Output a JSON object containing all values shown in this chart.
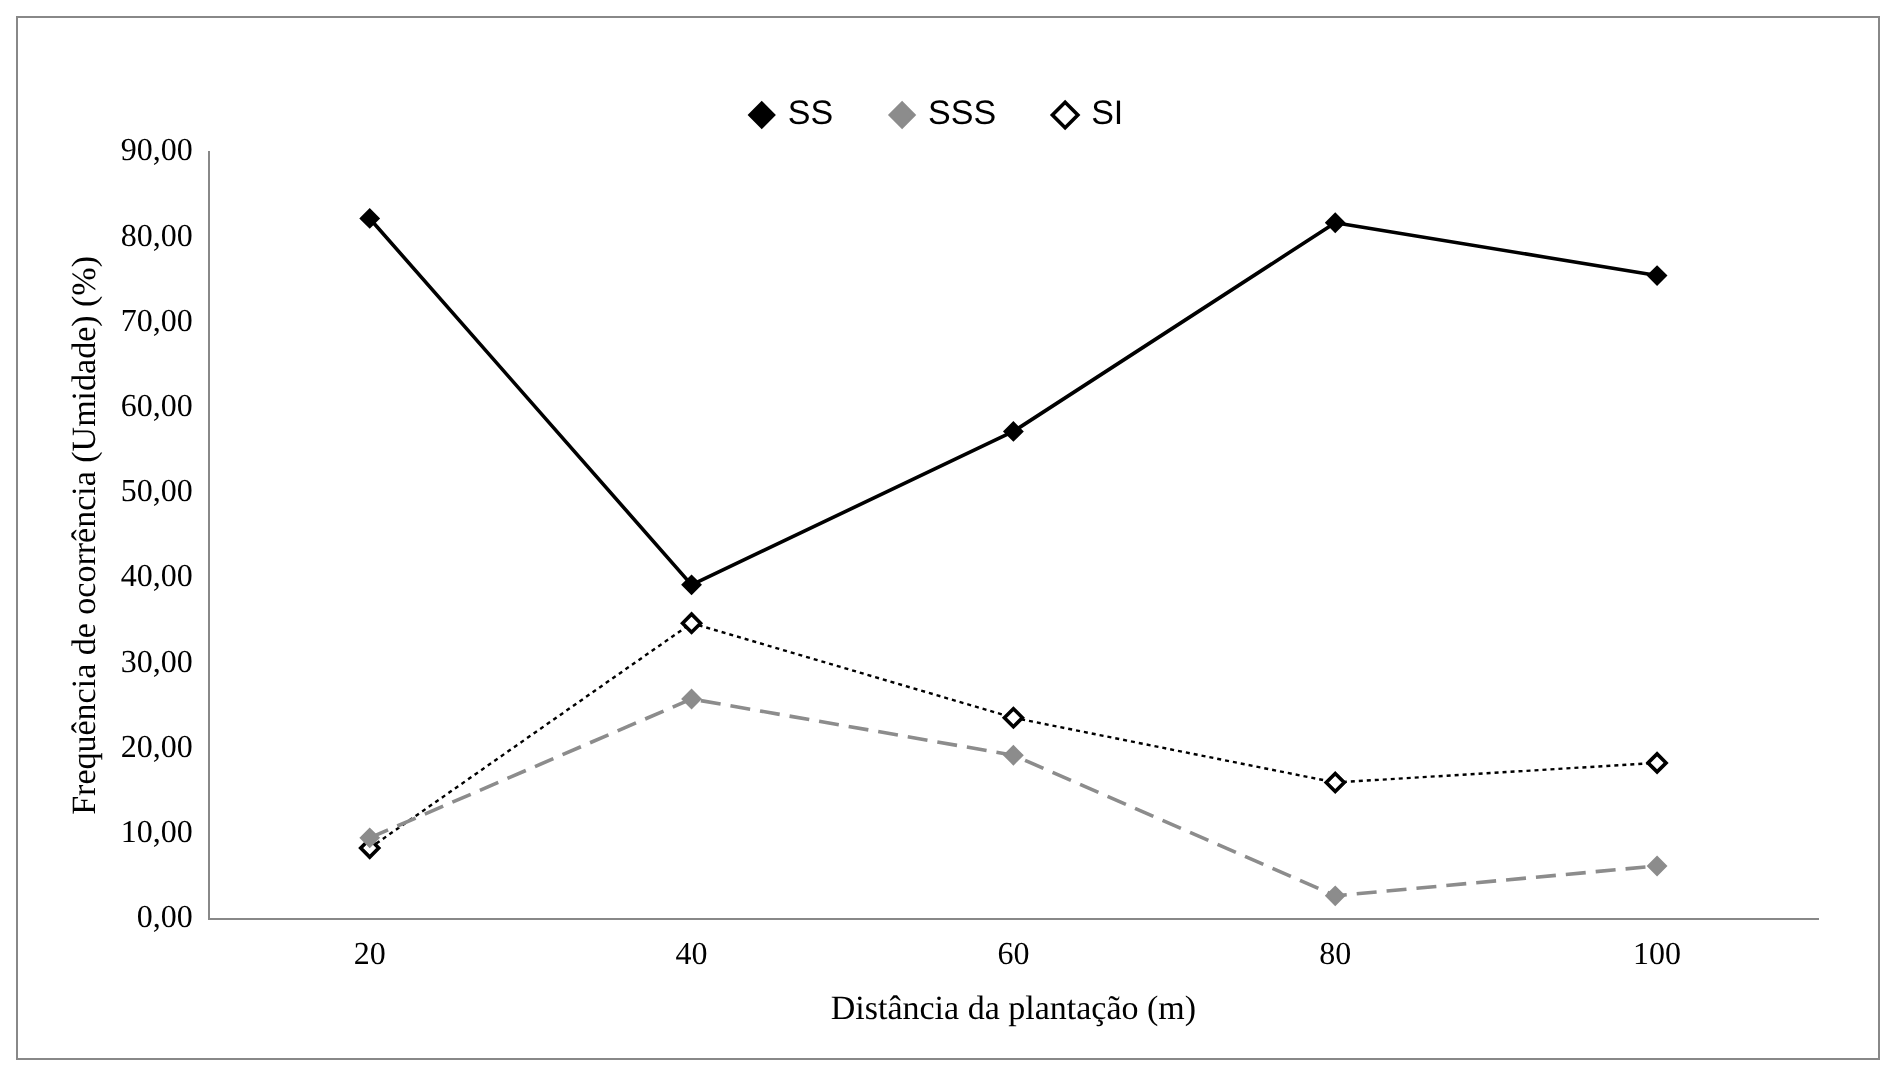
{
  "chart_data": {
    "type": "line",
    "xlabel": "Distância da plantação (m)",
    "ylabel": "Frequência de ocorrência (Umidade) (%)",
    "categories": [
      "20",
      "40",
      "60",
      "80",
      "100"
    ],
    "series": [
      {
        "name": "SS",
        "color": "#000000",
        "line_style": "solid",
        "values": [
          82.2,
          39.2,
          57.2,
          81.7,
          75.5
        ]
      },
      {
        "name": "SSS",
        "color": "#8c8c8c",
        "line_style": "dashed",
        "values": [
          9.5,
          25.8,
          19.2,
          2.7,
          6.2
        ]
      },
      {
        "name": "SI",
        "color": "#000000",
        "line_style": "dotted",
        "values": [
          8.3,
          34.7,
          23.6,
          16.0,
          18.3
        ]
      }
    ],
    "ylim": [
      0,
      90
    ],
    "yticks": [
      {
        "value": 0,
        "label": "0,00"
      },
      {
        "value": 10,
        "label": "10,00"
      },
      {
        "value": 20,
        "label": "20,00"
      },
      {
        "value": 30,
        "label": "30,00"
      },
      {
        "value": 40,
        "label": "40,00"
      },
      {
        "value": 50,
        "label": "50,00"
      },
      {
        "value": 60,
        "label": "60,00"
      },
      {
        "value": 70,
        "label": "70,00"
      },
      {
        "value": 80,
        "label": "80,00"
      },
      {
        "value": 90,
        "label": "90,00"
      }
    ],
    "grid": false,
    "legend": "top",
    "marker": "diamond"
  }
}
